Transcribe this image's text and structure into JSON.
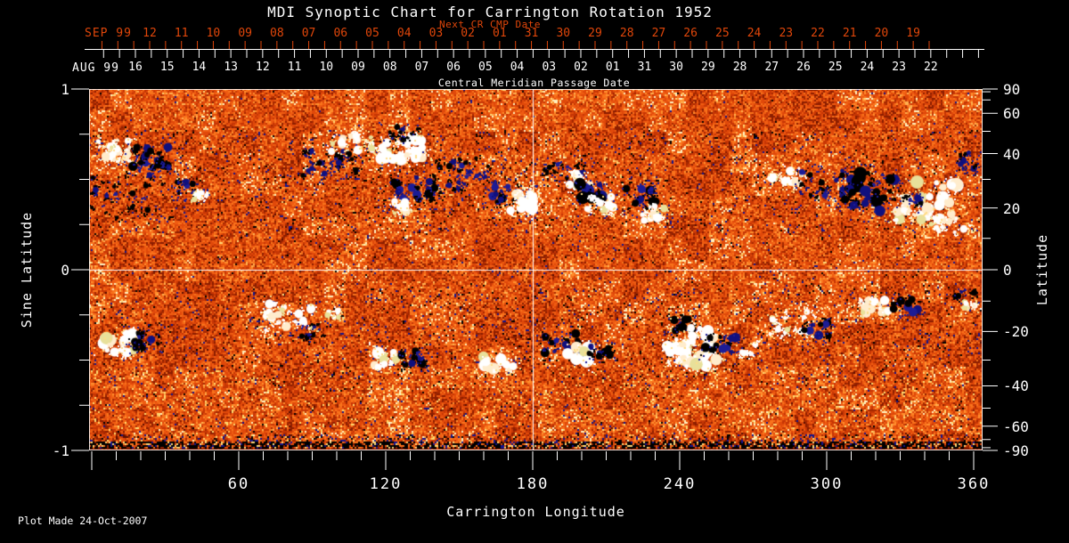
{
  "title": "MDI Synoptic Chart for Carrington Rotation 1952",
  "footer": "Plot Made 24-Oct-2007",
  "colors": {
    "background": "#000000",
    "foreground": "#ffffff",
    "next_cr_accent": "#e0460a"
  },
  "next_cr_axis": {
    "title": "Next CR CMP Date",
    "month_label": "SEP 99",
    "dates": [
      "12",
      "11",
      "10",
      "09",
      "08",
      "07",
      "06",
      "05",
      "04",
      "03",
      "02",
      "01",
      "31",
      "30",
      "29",
      "28",
      "27",
      "26",
      "25",
      "24",
      "23",
      "22",
      "21",
      "20",
      "19"
    ]
  },
  "cmp_axis": {
    "title": "Central Meridian Passage Date",
    "month_label": "AUG 99",
    "dates": [
      "16",
      "15",
      "14",
      "13",
      "12",
      "11",
      "10",
      "09",
      "08",
      "07",
      "06",
      "05",
      "04",
      "03",
      "02",
      "01",
      "31",
      "30",
      "29",
      "28",
      "27",
      "26",
      "25",
      "24",
      "23",
      "22"
    ]
  },
  "left_axis": {
    "title": "Sine Latitude",
    "range": [
      -1,
      1
    ],
    "labeled_ticks": [
      {
        "label": "1",
        "value": 1
      },
      {
        "label": "0",
        "value": 0
      },
      {
        "label": "-1",
        "value": -1
      }
    ],
    "minor_step": 0.25
  },
  "right_axis": {
    "title": "Latitude",
    "labeled_ticks_deg": [
      90,
      60,
      40,
      20,
      0,
      -20,
      -40,
      -60,
      -90
    ],
    "minor_step_deg": 10
  },
  "bottom_axis": {
    "title": "Carrington Longitude",
    "range": [
      0,
      360
    ],
    "labeled_ticks_deg": [
      60,
      120,
      180,
      240,
      300,
      360
    ],
    "minor_step_deg": 10
  },
  "chart_data": {
    "type": "heatmap",
    "description": "Solar synoptic magnetogram for Carrington rotation 1952: noisy orange/red quiet-sun field with white (positive polarity) and black/navy (negative polarity) active regions; white crosshair reference lines.",
    "x": {
      "label": "Carrington Longitude",
      "range": [
        0,
        360
      ]
    },
    "y": {
      "label": "Sine Latitude",
      "range": [
        -1,
        1
      ]
    },
    "crosshair": {
      "longitude": 180,
      "sine_latitude": 0
    },
    "palette": {
      "quiet_sun": [
        "#8c1e00",
        "#a62800",
        "#c63605",
        "#e0490a",
        "#ef5c12",
        "#f9731c",
        "#ff8f2e",
        "#ffb050",
        "#ffd878",
        "#fff2c0"
      ],
      "positive_polarity": [
        "#ffffff",
        "#ffeccc",
        "#e8e09a"
      ],
      "negative_polarity": [
        "#000000",
        "#10107e",
        "#1c1c96"
      ],
      "speckle": [
        "#000000",
        "#14148c",
        "#5a0e00"
      ]
    },
    "speckle_bands": [
      {
        "slat_range": [
          0.22,
          0.78
        ],
        "density": 0.05
      },
      {
        "slat_range": [
          -0.6,
          -0.1
        ],
        "density": 0.045
      },
      {
        "slat_range": [
          -0.12,
          0.22
        ],
        "density": 0.02
      },
      {
        "slat_range": [
          -0.97,
          -0.6
        ],
        "density": 0.025
      }
    ],
    "bottom_edge_band": {
      "slat_range": [
        -1.0,
        -0.96
      ],
      "style": "dark speckled strip"
    },
    "active_regions": [
      {
        "lon": 9,
        "slat": 0.66,
        "rlon": 6.5,
        "rslat": 0.059,
        "pol": "P",
        "n": 26,
        "size": "med"
      },
      {
        "lon": 24,
        "slat": 0.62,
        "rlon": 7.3,
        "rslat": 0.059,
        "pol": "N",
        "n": 24,
        "size": "med"
      },
      {
        "lon": 17,
        "slat": 0.41,
        "rlon": 21.8,
        "rslat": 0.123,
        "pol": "N",
        "n": 30,
        "size": "small"
      },
      {
        "lon": 39,
        "slat": 0.45,
        "rlon": 4.4,
        "rslat": 0.039,
        "pol": "N",
        "n": 10,
        "size": "small"
      },
      {
        "lon": 44,
        "slat": 0.41,
        "rlon": 2.9,
        "rslat": 0.03,
        "pol": "P",
        "n": 8,
        "size": "small"
      },
      {
        "lon": 97,
        "slat": 0.61,
        "rlon": 10.9,
        "rslat": 0.089,
        "pol": "N",
        "n": 26,
        "size": "small"
      },
      {
        "lon": 106,
        "slat": 0.7,
        "rlon": 9.1,
        "rslat": 0.049,
        "pol": "P",
        "n": 18,
        "size": "med"
      },
      {
        "lon": 125,
        "slat": 0.68,
        "rlon": 10.9,
        "rslat": 0.069,
        "pol": "P",
        "n": 30,
        "size": "big"
      },
      {
        "lon": 126,
        "slat": 0.76,
        "rlon": 7.3,
        "rslat": 0.039,
        "pol": "N",
        "n": 12,
        "size": "small"
      },
      {
        "lon": 131,
        "slat": 0.44,
        "rlon": 9.1,
        "rslat": 0.069,
        "pol": "N",
        "n": 22,
        "size": "med"
      },
      {
        "lon": 125,
        "slat": 0.35,
        "rlon": 5.1,
        "rslat": 0.039,
        "pol": "P",
        "n": 12,
        "size": "med"
      },
      {
        "lon": 152,
        "slat": 0.52,
        "rlon": 12.7,
        "rslat": 0.099,
        "pol": "N",
        "n": 28,
        "size": "small"
      },
      {
        "lon": 170,
        "slat": 0.43,
        "rlon": 6.5,
        "rslat": 0.069,
        "pol": "N",
        "n": 16,
        "size": "med"
      },
      {
        "lon": 175,
        "slat": 0.38,
        "rlon": 5.1,
        "rslat": 0.059,
        "pol": "P",
        "n": 16,
        "size": "big"
      },
      {
        "lon": 192,
        "slat": 0.53,
        "rlon": 9.1,
        "rslat": 0.059,
        "pol": "N",
        "n": 18,
        "size": "small"
      },
      {
        "lon": 199,
        "slat": 0.5,
        "rlon": 4.4,
        "rslat": 0.039,
        "pol": "P",
        "n": 10,
        "size": "med"
      },
      {
        "lon": 205,
        "slat": 0.43,
        "rlon": 6.5,
        "rslat": 0.054,
        "pol": "N",
        "n": 18,
        "size": "big"
      },
      {
        "lon": 208,
        "slat": 0.36,
        "rlon": 5.8,
        "rslat": 0.044,
        "pol": "P",
        "n": 14,
        "size": "med"
      },
      {
        "lon": 224,
        "slat": 0.39,
        "rlon": 6.5,
        "rslat": 0.059,
        "pol": "N",
        "n": 16,
        "size": "med"
      },
      {
        "lon": 229,
        "slat": 0.31,
        "rlon": 5.1,
        "rslat": 0.044,
        "pol": "P",
        "n": 12,
        "size": "med"
      },
      {
        "lon": 284,
        "slat": 0.51,
        "rlon": 6.5,
        "rslat": 0.059,
        "pol": "P",
        "n": 18,
        "size": "med"
      },
      {
        "lon": 298,
        "slat": 0.48,
        "rlon": 9.1,
        "rslat": 0.089,
        "pol": "N",
        "n": 22,
        "size": "small"
      },
      {
        "lon": 318,
        "slat": 0.43,
        "rlon": 10.9,
        "rslat": 0.108,
        "pol": "N",
        "n": 34,
        "size": "big"
      },
      {
        "lon": 341,
        "slat": 0.38,
        "rlon": 12.7,
        "rslat": 0.108,
        "pol": "P",
        "n": 40,
        "size": "big"
      },
      {
        "lon": 335,
        "slat": 0.37,
        "rlon": 4.4,
        "rslat": 0.039,
        "pol": "N",
        "n": 8,
        "size": "med"
      },
      {
        "lon": 349,
        "slat": 0.25,
        "rlon": 7.3,
        "rslat": 0.049,
        "pol": "P",
        "n": 12,
        "size": "med"
      },
      {
        "lon": 359,
        "slat": 0.6,
        "rlon": 5.5,
        "rslat": 0.049,
        "pol": "N",
        "n": 10,
        "size": "small"
      },
      {
        "lon": 11,
        "slat": -0.41,
        "rlon": 7.3,
        "rslat": 0.059,
        "pol": "P",
        "n": 22,
        "size": "big"
      },
      {
        "lon": 22,
        "slat": -0.39,
        "rlon": 5.8,
        "rslat": 0.049,
        "pol": "N",
        "n": 16,
        "size": "med"
      },
      {
        "lon": 80,
        "slat": -0.26,
        "rlon": 10.2,
        "rslat": 0.079,
        "pol": "P",
        "n": 24,
        "size": "med"
      },
      {
        "lon": 89,
        "slat": -0.34,
        "rlon": 5.5,
        "rslat": 0.039,
        "pol": "N",
        "n": 10,
        "size": "small"
      },
      {
        "lon": 98,
        "slat": -0.25,
        "rlon": 2.9,
        "rslat": 0.025,
        "pol": "P",
        "n": 6,
        "size": "small"
      },
      {
        "lon": 121,
        "slat": -0.5,
        "rlon": 5.8,
        "rslat": 0.044,
        "pol": "P",
        "n": 14,
        "size": "big"
      },
      {
        "lon": 130,
        "slat": -0.48,
        "rlon": 5.8,
        "rslat": 0.049,
        "pol": "N",
        "n": 14,
        "size": "med"
      },
      {
        "lon": 166,
        "slat": -0.51,
        "rlon": 6.5,
        "rslat": 0.049,
        "pol": "P",
        "n": 16,
        "size": "big"
      },
      {
        "lon": 192,
        "slat": -0.41,
        "rlon": 7.3,
        "rslat": 0.059,
        "pol": "N",
        "n": 18,
        "size": "med"
      },
      {
        "lon": 199,
        "slat": -0.47,
        "rlon": 5.1,
        "rslat": 0.044,
        "pol": "P",
        "n": 12,
        "size": "big"
      },
      {
        "lon": 207,
        "slat": -0.45,
        "rlon": 5.1,
        "rslat": 0.039,
        "pol": "N",
        "n": 10,
        "size": "med"
      },
      {
        "lon": 240,
        "slat": -0.3,
        "rlon": 5.1,
        "rslat": 0.039,
        "pol": "N",
        "n": 10,
        "size": "med"
      },
      {
        "lon": 245,
        "slat": -0.43,
        "rlon": 10.2,
        "rslat": 0.108,
        "pol": "P",
        "n": 44,
        "size": "big"
      },
      {
        "lon": 257,
        "slat": -0.42,
        "rlon": 6.5,
        "rslat": 0.049,
        "pol": "N",
        "n": 14,
        "size": "med"
      },
      {
        "lon": 268,
        "slat": -0.44,
        "rlon": 3.6,
        "rslat": 0.03,
        "pol": "P",
        "n": 8,
        "size": "small"
      },
      {
        "lon": 286,
        "slat": -0.3,
        "rlon": 9.1,
        "rslat": 0.069,
        "pol": "P",
        "n": 22,
        "size": "small"
      },
      {
        "lon": 296,
        "slat": -0.33,
        "rlon": 5.1,
        "rslat": 0.044,
        "pol": "N",
        "n": 10,
        "size": "med"
      },
      {
        "lon": 319,
        "slat": -0.2,
        "rlon": 7.3,
        "rslat": 0.049,
        "pol": "P",
        "n": 16,
        "size": "med"
      },
      {
        "lon": 332,
        "slat": -0.2,
        "rlon": 5.1,
        "rslat": 0.044,
        "pol": "N",
        "n": 10,
        "size": "med"
      },
      {
        "lon": 356,
        "slat": -0.15,
        "rlon": 4.4,
        "rslat": 0.034,
        "pol": "N",
        "n": 8,
        "size": "med"
      },
      {
        "lon": 359,
        "slat": -0.19,
        "rlon": 2.9,
        "rslat": 0.025,
        "pol": "P",
        "n": 6,
        "size": "small"
      }
    ]
  }
}
